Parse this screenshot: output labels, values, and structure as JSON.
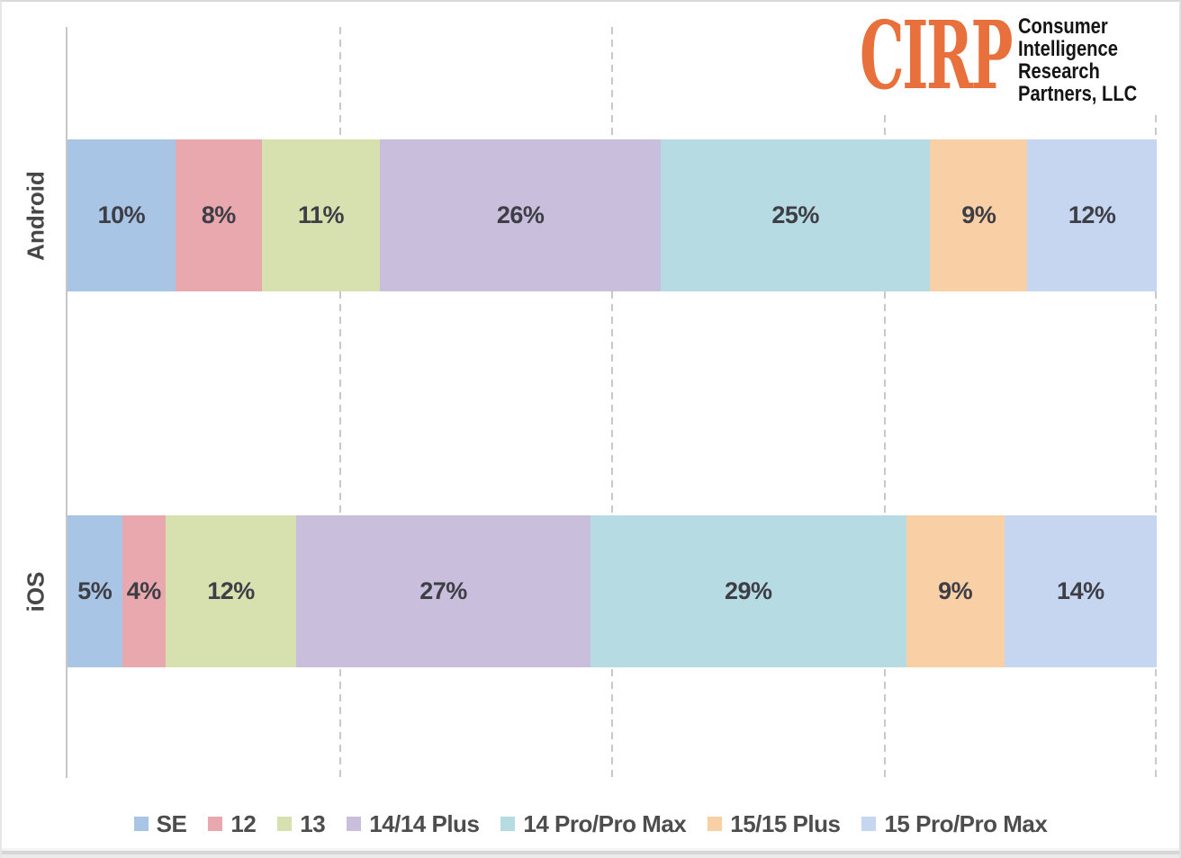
{
  "brand": {
    "logo_text": "CIRP",
    "logo_color": "#E8703C",
    "name_lines": [
      "Consumer",
      "Intelligence",
      "Research",
      "Partners, LLC"
    ]
  },
  "chart_data": {
    "type": "bar",
    "orientation": "horizontal",
    "stacked": true,
    "categories": [
      "Android",
      "iOS"
    ],
    "series": [
      {
        "name": "SE",
        "color": "#A9C5E6",
        "values": [
          10,
          5
        ]
      },
      {
        "name": "12",
        "color": "#E8A8AD",
        "values": [
          8,
          4
        ]
      },
      {
        "name": "13",
        "color": "#D7E1B0",
        "values": [
          11,
          12
        ]
      },
      {
        "name": "14/14 Plus",
        "color": "#C9BEDC",
        "values": [
          26,
          27
        ]
      },
      {
        "name": "14 Pro/Pro Max",
        "color": "#B6DBE3",
        "values": [
          25,
          29
        ]
      },
      {
        "name": "15/15 Plus",
        "color": "#F9CFA5",
        "values": [
          9,
          9
        ]
      },
      {
        "name": "15 Pro/Pro Max",
        "color": "#C6D6F0",
        "values": [
          12,
          14
        ]
      }
    ],
    "value_suffix": "%",
    "xlim": [
      0,
      100
    ],
    "gridlines_percent": [
      25,
      50,
      75,
      100
    ],
    "grid_style": "dashed",
    "legend_position": "bottom",
    "value_labels_shown": true
  }
}
